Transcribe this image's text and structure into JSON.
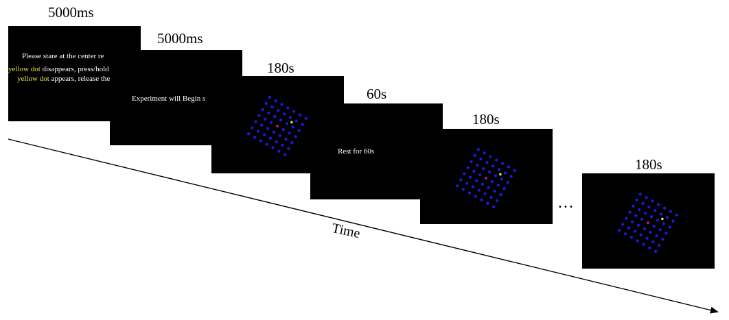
{
  "durations": {
    "instructions": "5000ms",
    "countdown": "5000ms",
    "task1": "180s",
    "rest": "60s",
    "task2": "180s",
    "task3": "180s"
  },
  "screens": {
    "instructions": {
      "line1": "Please stare at the center re",
      "line2_hl": "yellow dot",
      "line2_rest": " disappears, press/hold t",
      "line3_hl": "yellow dot",
      "line3_rest": " appears, release the"
    },
    "countdown": {
      "text": "Experiment will Begin s"
    },
    "rest": {
      "text": "Rest for 60s"
    }
  },
  "ellipsis": "…",
  "axis": {
    "label": "Time"
  },
  "colors": {
    "screen": "#000000",
    "grid_dot": "#1a1ad6",
    "center_dot": "#e01e1e",
    "target_dot": "#f2e83a",
    "highlight_text": "#e8e23a"
  }
}
